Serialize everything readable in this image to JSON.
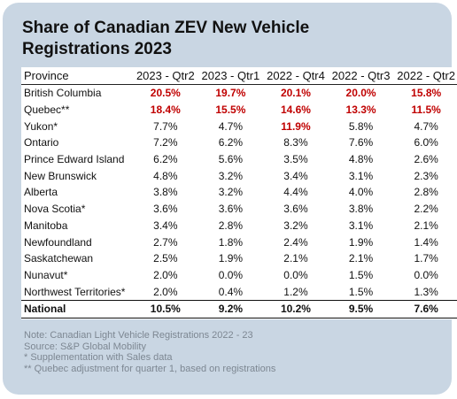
{
  "chart_data": {
    "type": "table",
    "title": "Share of Canadian ZEV New Vehicle Registrations 2023",
    "columns": [
      "Province",
      "2023 - Qtr2",
      "2023 - Qtr1",
      "2022 - Qtr4",
      "2022 - Qtr3",
      "2022 - Qtr2"
    ],
    "rows": [
      {
        "province": "British Columbia",
        "values": [
          "20.5%",
          "19.7%",
          "20.1%",
          "20.0%",
          "15.8%"
        ],
        "highlight": [
          true,
          true,
          true,
          true,
          true
        ]
      },
      {
        "province": "Quebec**",
        "values": [
          "18.4%",
          "15.5%",
          "14.6%",
          "13.3%",
          "11.5%"
        ],
        "highlight": [
          true,
          true,
          true,
          true,
          true
        ]
      },
      {
        "province": "Yukon*",
        "values": [
          "7.7%",
          "4.7%",
          "11.9%",
          "5.8%",
          "4.7%"
        ],
        "highlight": [
          false,
          false,
          true,
          false,
          false
        ]
      },
      {
        "province": "Ontario",
        "values": [
          "7.2%",
          "6.2%",
          "8.3%",
          "7.6%",
          "6.0%"
        ],
        "highlight": [
          false,
          false,
          false,
          false,
          false
        ]
      },
      {
        "province": "Prince Edward Island",
        "values": [
          "6.2%",
          "5.6%",
          "3.5%",
          "4.8%",
          "2.6%"
        ],
        "highlight": [
          false,
          false,
          false,
          false,
          false
        ]
      },
      {
        "province": "New Brunswick",
        "values": [
          "4.8%",
          "3.2%",
          "3.4%",
          "3.1%",
          "2.3%"
        ],
        "highlight": [
          false,
          false,
          false,
          false,
          false
        ]
      },
      {
        "province": "Alberta",
        "values": [
          "3.8%",
          "3.2%",
          "4.4%",
          "4.0%",
          "2.8%"
        ],
        "highlight": [
          false,
          false,
          false,
          false,
          false
        ]
      },
      {
        "province": "Nova Scotia*",
        "values": [
          "3.6%",
          "3.6%",
          "3.6%",
          "3.8%",
          "2.2%"
        ],
        "highlight": [
          false,
          false,
          false,
          false,
          false
        ]
      },
      {
        "province": "Manitoba",
        "values": [
          "3.4%",
          "2.8%",
          "3.2%",
          "3.1%",
          "2.1%"
        ],
        "highlight": [
          false,
          false,
          false,
          false,
          false
        ]
      },
      {
        "province": "Newfoundland",
        "values": [
          "2.7%",
          "1.8%",
          "2.4%",
          "1.9%",
          "1.4%"
        ],
        "highlight": [
          false,
          false,
          false,
          false,
          false
        ]
      },
      {
        "province": "Saskatchewan",
        "values": [
          "2.5%",
          "1.9%",
          "2.1%",
          "2.1%",
          "1.7%"
        ],
        "highlight": [
          false,
          false,
          false,
          false,
          false
        ]
      },
      {
        "province": "Nunavut*",
        "values": [
          "2.0%",
          "0.0%",
          "0.0%",
          "1.5%",
          "0.0%"
        ],
        "highlight": [
          false,
          false,
          false,
          false,
          false
        ]
      },
      {
        "province": "Northwest Territories*",
        "values": [
          "2.0%",
          "0.4%",
          "1.2%",
          "1.5%",
          "1.3%"
        ],
        "highlight": [
          false,
          false,
          false,
          false,
          false
        ]
      }
    ],
    "total": {
      "province": "National",
      "values": [
        "10.5%",
        "9.2%",
        "10.2%",
        "9.5%",
        "7.6%"
      ]
    },
    "highlight_color": "#c00000",
    "notes": [
      "Note: Canadian Light Vehicle Registrations 2022 - 23",
      "Source: S&P Global Mobility",
      "* Supplementation with Sales data",
      "** Quebec adjustment for quarter 1, based on registrations"
    ]
  }
}
